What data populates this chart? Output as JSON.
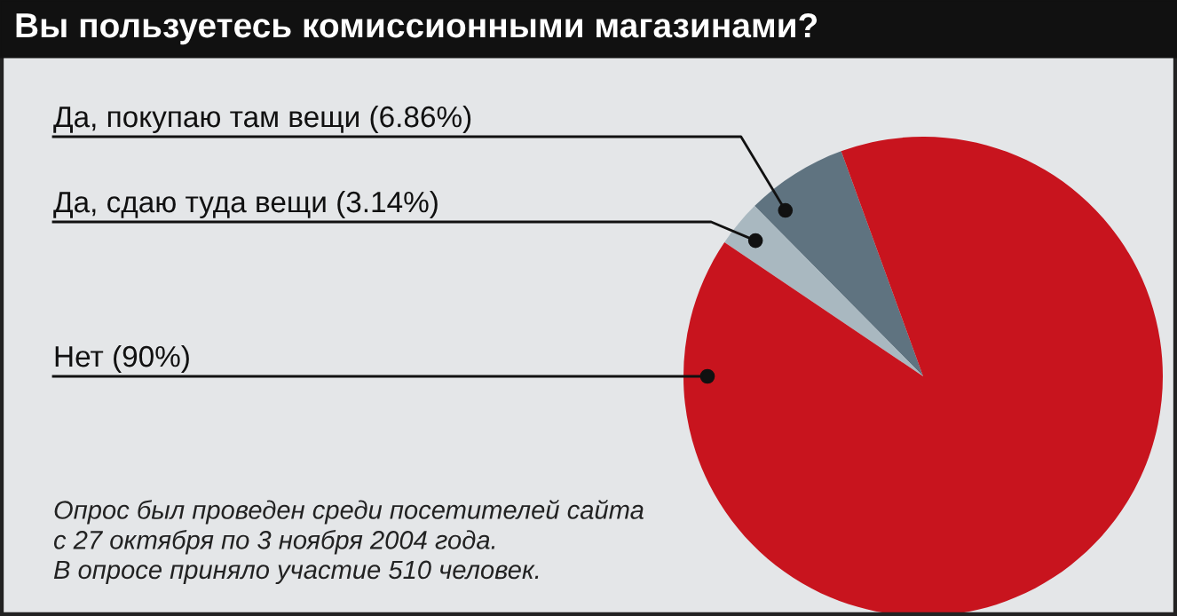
{
  "chart_data": {
    "type": "pie",
    "title": "Вы пользуетесь комиссионными магазинами?",
    "categories": [
      "Да, покупаю там вещи",
      "Да, сдаю туда вещи",
      "Нет"
    ],
    "values": [
      6.86,
      3.14,
      90
    ],
    "value_labels": [
      "(6.86%)",
      "(3.14%)",
      "(90%)"
    ],
    "colors": [
      "#5f7380",
      "#a9b8c0",
      "#c8141e"
    ],
    "annotations": [
      "Опрос был проведен среди посетителей сайта\nс 27 октября по 3 ноября 2004 года.\nВ опросе приняло участие 510 человек."
    ]
  }
}
